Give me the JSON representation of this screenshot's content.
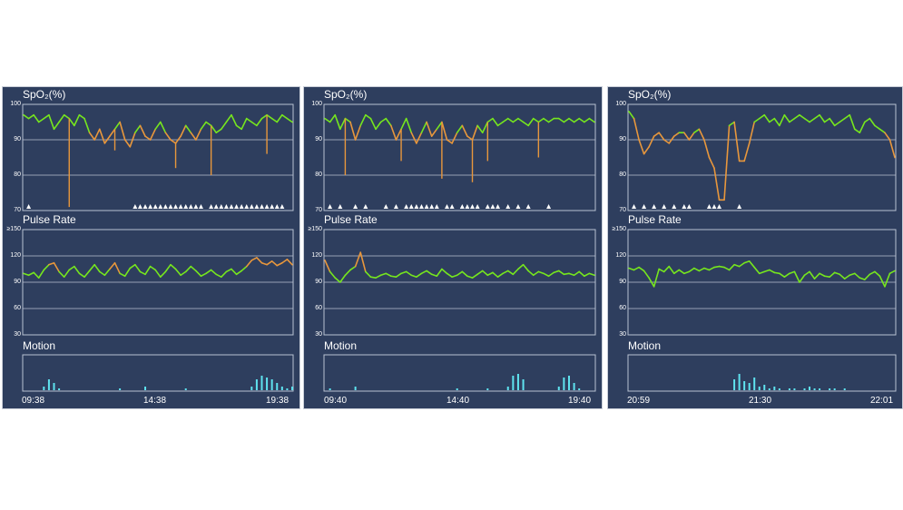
{
  "colors": {
    "background": "#2e3e5e",
    "frame": "#b8c2d2",
    "normal_trace": "#76e61e",
    "abnormal_trace": "#e8973c",
    "motion": "#5fe3ef",
    "alarm_marker": "#ffffff"
  },
  "chart_data": [
    {
      "type": "line",
      "titles": [
        "SpO₂(%)",
        "Pulse Rate",
        "Motion"
      ],
      "time_start": "09:38",
      "time_mid": "14:38",
      "time_end": "19:38",
      "spo2": {
        "ylim": [
          70,
          100
        ],
        "yticks": [
          "100",
          "90",
          "80",
          "70"
        ],
        "threshold": 92,
        "y": [
          97,
          96,
          97,
          95,
          96,
          97,
          93,
          95,
          97,
          96,
          94,
          97,
          96,
          92,
          90,
          93,
          89,
          91,
          93,
          95,
          90,
          88,
          92,
          94,
          91,
          90,
          93,
          95,
          92,
          90,
          89,
          91,
          94,
          92,
          90,
          93,
          95,
          94,
          92,
          93,
          95,
          97,
          94,
          93,
          96,
          95,
          94,
          96,
          97,
          96,
          95,
          97,
          96,
          95
        ],
        "dips": [
          [
            9,
            71
          ],
          [
            18,
            87
          ],
          [
            30,
            82
          ],
          [
            37,
            80
          ],
          [
            48,
            86
          ]
        ],
        "alarms": [
          1,
          22,
          23,
          24,
          25,
          26,
          27,
          28,
          29,
          30,
          31,
          32,
          33,
          34,
          35,
          37,
          38,
          39,
          40,
          41,
          42,
          43,
          44,
          45,
          46,
          47,
          48,
          49,
          50,
          51
        ]
      },
      "pulse": {
        "ylim": [
          30,
          150
        ],
        "yticks": [
          "≥150",
          "120",
          "90",
          "60",
          "30"
        ],
        "threshold": 110,
        "y": [
          100,
          98,
          101,
          95,
          104,
          110,
          112,
          102,
          96,
          104,
          108,
          100,
          96,
          103,
          110,
          102,
          98,
          105,
          112,
          100,
          97,
          106,
          110,
          102,
          99,
          108,
          104,
          96,
          102,
          110,
          105,
          98,
          102,
          108,
          103,
          97,
          100,
          104,
          99,
          96,
          102,
          105,
          99,
          103,
          108,
          115,
          118,
          112,
          110,
          114,
          109,
          112,
          116,
          110
        ]
      },
      "motion": {
        "y": [
          0,
          0,
          0,
          0,
          0.1,
          0.3,
          0.2,
          0.05,
          0,
          0,
          0,
          0,
          0,
          0,
          0,
          0,
          0,
          0,
          0,
          0.05,
          0,
          0,
          0,
          0,
          0.1,
          0,
          0,
          0,
          0,
          0,
          0,
          0,
          0.05,
          0,
          0,
          0,
          0,
          0,
          0,
          0,
          0,
          0,
          0,
          0,
          0,
          0.1,
          0.3,
          0.4,
          0.35,
          0.3,
          0.2,
          0.1,
          0.05,
          0.1
        ]
      }
    },
    {
      "type": "line",
      "titles": [
        "SpO₂(%)",
        "Pulse Rate",
        "Motion"
      ],
      "time_start": "09:40",
      "time_mid": "14:40",
      "time_end": "19:40",
      "spo2": {
        "ylim": [
          70,
          100
        ],
        "yticks": [
          "100",
          "90",
          "80",
          "70"
        ],
        "threshold": 92,
        "y": [
          96,
          95,
          97,
          93,
          96,
          95,
          90,
          94,
          97,
          96,
          93,
          95,
          96,
          94,
          90,
          93,
          96,
          92,
          89,
          92,
          95,
          91,
          93,
          95,
          90,
          89,
          92,
          94,
          91,
          90,
          94,
          92,
          95,
          96,
          94,
          95,
          96,
          95,
          96,
          95,
          94,
          96,
          95,
          96,
          95,
          96,
          96,
          95,
          96,
          95,
          96,
          95,
          96,
          95
        ],
        "dips": [
          [
            4,
            80
          ],
          [
            15,
            84
          ],
          [
            23,
            79
          ],
          [
            29,
            78
          ],
          [
            32,
            84
          ],
          [
            42,
            85
          ]
        ],
        "alarms": [
          1,
          3,
          6,
          8,
          12,
          14,
          16,
          17,
          18,
          19,
          20,
          21,
          22,
          24,
          25,
          27,
          28,
          29,
          30,
          32,
          33,
          34,
          36,
          38,
          40,
          44
        ]
      },
      "pulse": {
        "ylim": [
          30,
          150
        ],
        "yticks": [
          "≥150",
          "120",
          "90",
          "60",
          "30"
        ],
        "threshold": 110,
        "y": [
          115,
          102,
          95,
          90,
          98,
          104,
          108,
          124,
          102,
          96,
          95,
          98,
          100,
          97,
          96,
          100,
          102,
          98,
          96,
          100,
          103,
          99,
          97,
          105,
          100,
          96,
          98,
          102,
          97,
          95,
          99,
          103,
          98,
          101,
          96,
          100,
          103,
          99,
          105,
          110,
          103,
          98,
          102,
          100,
          97,
          101,
          103,
          99,
          100,
          98,
          102,
          97,
          100,
          98
        ]
      },
      "motion": {
        "y": [
          0,
          0.05,
          0,
          0,
          0,
          0,
          0.1,
          0,
          0,
          0,
          0,
          0,
          0,
          0,
          0,
          0,
          0,
          0,
          0,
          0,
          0,
          0,
          0,
          0,
          0,
          0,
          0.05,
          0,
          0,
          0,
          0,
          0,
          0.05,
          0,
          0,
          0,
          0.1,
          0.4,
          0.45,
          0.3,
          0,
          0,
          0,
          0,
          0,
          0,
          0.1,
          0.35,
          0.4,
          0.2,
          0.05,
          0,
          0,
          0
        ]
      }
    },
    {
      "type": "line",
      "titles": [
        "SpO₂(%)",
        "Pulse Rate",
        "Motion"
      ],
      "time_start": "20:59",
      "time_mid": "21:30",
      "time_end": "22:01",
      "spo2": {
        "ylim": [
          70,
          100
        ],
        "yticks": [
          "100",
          "90",
          "80",
          "70"
        ],
        "threshold": 92,
        "y": [
          98,
          96,
          90,
          86,
          88,
          91,
          92,
          90,
          89,
          91,
          92,
          92,
          90,
          92,
          93,
          90,
          85,
          82,
          73,
          73,
          94,
          95,
          84,
          84,
          89,
          95,
          96,
          97,
          95,
          96,
          94,
          97,
          95,
          96,
          97,
          96,
          95,
          96,
          97,
          95,
          96,
          94,
          95,
          96,
          97,
          93,
          92,
          95,
          96,
          94,
          93,
          92,
          90,
          85
        ],
        "dips": [],
        "alarms": [
          1,
          3,
          5,
          7,
          9,
          11,
          12,
          16,
          17,
          18,
          22
        ]
      },
      "pulse": {
        "ylim": [
          30,
          150
        ],
        "yticks": [
          "≥150",
          "120",
          "90",
          "60",
          "30"
        ],
        "threshold": 130,
        "y": [
          106,
          104,
          107,
          103,
          95,
          85,
          105,
          102,
          108,
          100,
          104,
          100,
          102,
          106,
          103,
          106,
          104,
          107,
          108,
          107,
          104,
          110,
          108,
          112,
          114,
          107,
          100,
          102,
          104,
          101,
          100,
          96,
          100,
          102,
          90,
          98,
          102,
          94,
          100,
          97,
          96,
          101,
          99,
          94,
          98,
          100,
          95,
          93,
          99,
          102,
          97,
          85,
          100,
          103
        ]
      },
      "motion": {
        "y": [
          0,
          0,
          0,
          0,
          0,
          0,
          0,
          0,
          0,
          0,
          0,
          0,
          0,
          0,
          0,
          0,
          0,
          0,
          0,
          0,
          0,
          0.3,
          0.45,
          0.25,
          0.2,
          0.35,
          0.1,
          0.15,
          0.05,
          0.1,
          0.05,
          0,
          0.05,
          0.05,
          0,
          0.05,
          0.1,
          0.05,
          0.05,
          0,
          0.05,
          0.05,
          0,
          0.05,
          0,
          0,
          0,
          0,
          0,
          0,
          0,
          0,
          0,
          0
        ]
      }
    }
  ]
}
